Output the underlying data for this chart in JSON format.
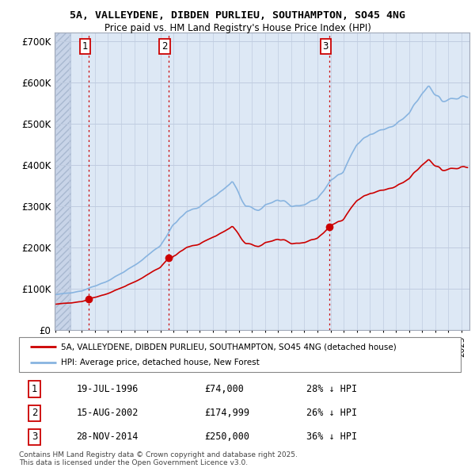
{
  "title1": "5A, VALLEYDENE, DIBDEN PURLIEU, SOUTHAMPTON, SO45 4NG",
  "title2": "Price paid vs. HM Land Registry's House Price Index (HPI)",
  "legend_label_red": "5A, VALLEYDENE, DIBDEN PURLIEU, SOUTHAMPTON, SO45 4NG (detached house)",
  "legend_label_blue": "HPI: Average price, detached house, New Forest",
  "transactions": [
    {
      "num": 1,
      "date": "19-JUL-1996",
      "x": 1996.542,
      "price": 74000,
      "price_str": "£74,000",
      "pct": "28% ↓ HPI"
    },
    {
      "num": 2,
      "date": "15-AUG-2002",
      "x": 2002.625,
      "price": 174999,
      "price_str": "£174,999",
      "pct": "26% ↓ HPI"
    },
    {
      "num": 3,
      "date": "28-NOV-2014",
      "x": 2014.917,
      "price": 250000,
      "price_str": "£250,000",
      "pct": "36% ↓ HPI"
    }
  ],
  "footer_line1": "Contains HM Land Registry data © Crown copyright and database right 2025.",
  "footer_line2": "This data is licensed under the Open Government Licence v3.0.",
  "xlim_left": 1993.92,
  "xlim_right": 2025.6,
  "ylim": [
    0,
    720000
  ],
  "yticks": [
    0,
    100000,
    200000,
    300000,
    400000,
    500000,
    600000,
    700000
  ],
  "ytick_labels": [
    "£0",
    "£100K",
    "£200K",
    "£300K",
    "£400K",
    "£500K",
    "£600K",
    "£700K"
  ],
  "red_color": "#cc0000",
  "blue_color": "#88b4e0",
  "bg_plot": "#dde8f5",
  "grid_color": "#c0cce0",
  "hatch_end": 1995.1,
  "hatch_color": "#c8d4e4"
}
